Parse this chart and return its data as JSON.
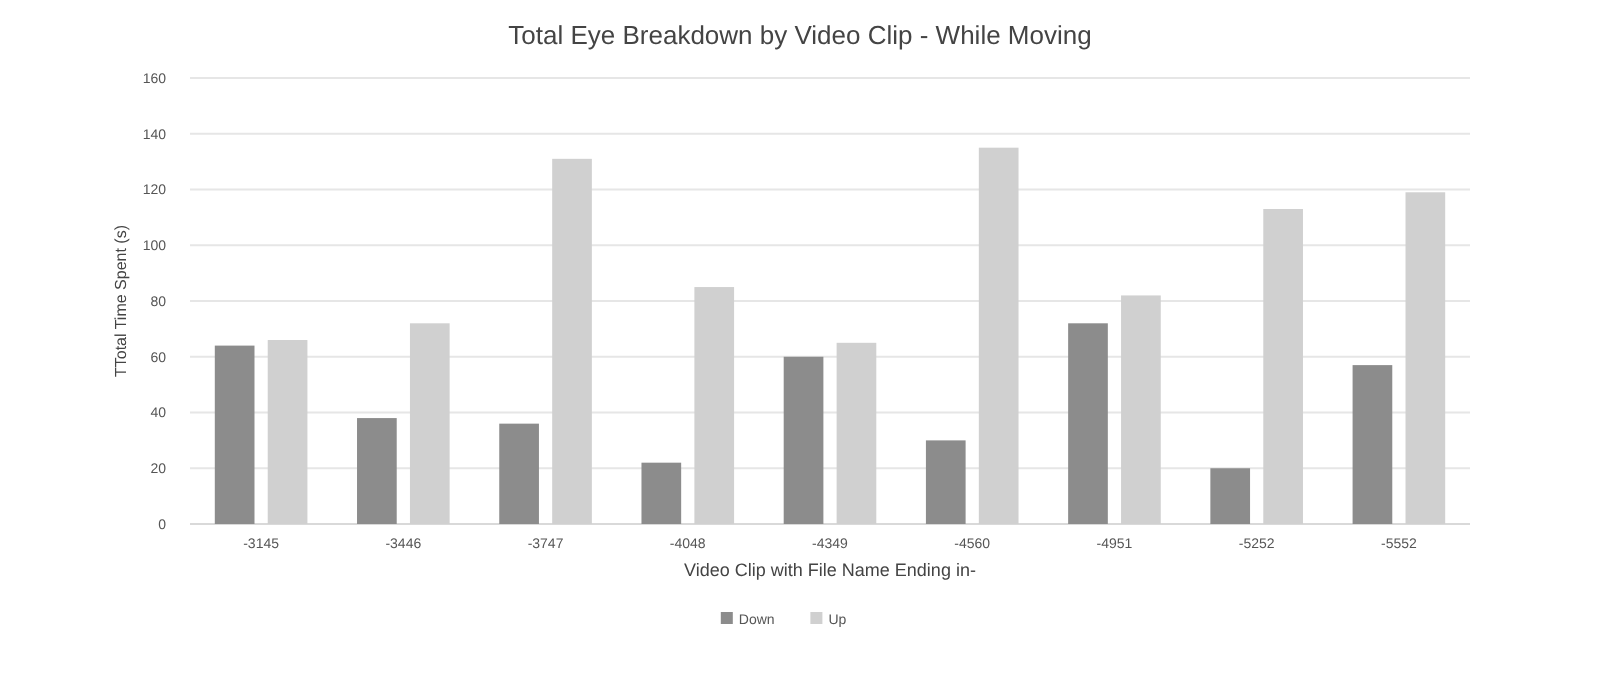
{
  "chart_data": {
    "type": "bar",
    "title": "Total Eye Breakdown by Video Clip - While Moving",
    "xlabel": "Video Clip with File Name Ending in-",
    "ylabel": "TTotal Time Spent (s)",
    "categories": [
      "-3145",
      "-3446",
      "-3747",
      "-4048",
      "-4349",
      "-4560",
      "-4951",
      "-5252",
      "-5552"
    ],
    "series": [
      {
        "name": "Down",
        "color": "#8c8c8c",
        "values": [
          64,
          38,
          36,
          22,
          60,
          30,
          72,
          20,
          57
        ]
      },
      {
        "name": "Up",
        "color": "#d0d0d0",
        "values": [
          66,
          72,
          131,
          85,
          65,
          135,
          82,
          113,
          119
        ]
      }
    ],
    "ylim": [
      0,
      160
    ],
    "yticks": [
      0,
      20,
      40,
      60,
      80,
      100,
      120,
      140,
      160
    ],
    "grid": "y",
    "legend": "bottom"
  }
}
